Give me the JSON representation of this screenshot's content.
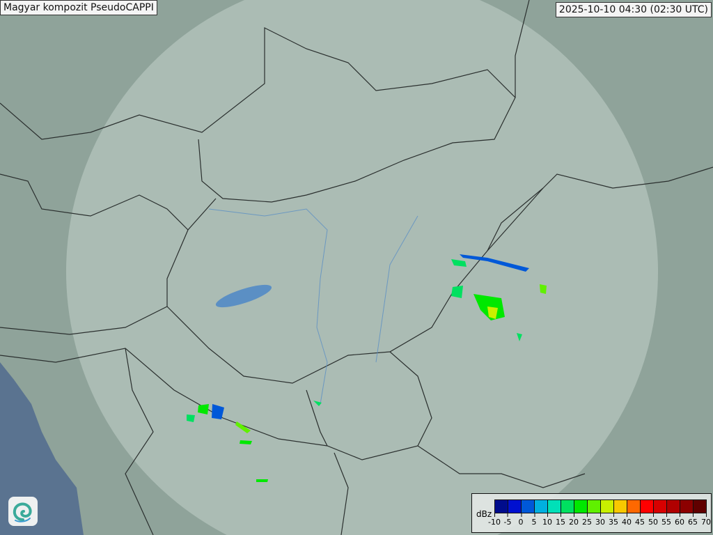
{
  "title": "Magyar kompozit  PseudoCAPPI",
  "timestamp": "2025-10-10 04:30 (02:30 UTC)",
  "legend": {
    "unit": "dBz",
    "ticks": [
      "-10",
      "-5",
      "0",
      "5",
      "10",
      "15",
      "20",
      "25",
      "30",
      "35",
      "40",
      "45",
      "50",
      "55",
      "60",
      "65",
      "70"
    ],
    "colors": [
      "#000c8c",
      "#0010d0",
      "#0058d8",
      "#00b0e0",
      "#00e0b8",
      "#00e060",
      "#00e800",
      "#60f000",
      "#c8f000",
      "#f8c800",
      "#ff6800",
      "#ff0000",
      "#d80000",
      "#b00000",
      "#8c0000",
      "#600000"
    ]
  },
  "logo": {
    "icon": "swirl-logo-icon"
  },
  "colors": {
    "land": "#8fa39a",
    "coverage": "#c8d6cf",
    "sea": "#5a7390",
    "border": "#2a2f2e",
    "river": "#5b8fc4"
  }
}
